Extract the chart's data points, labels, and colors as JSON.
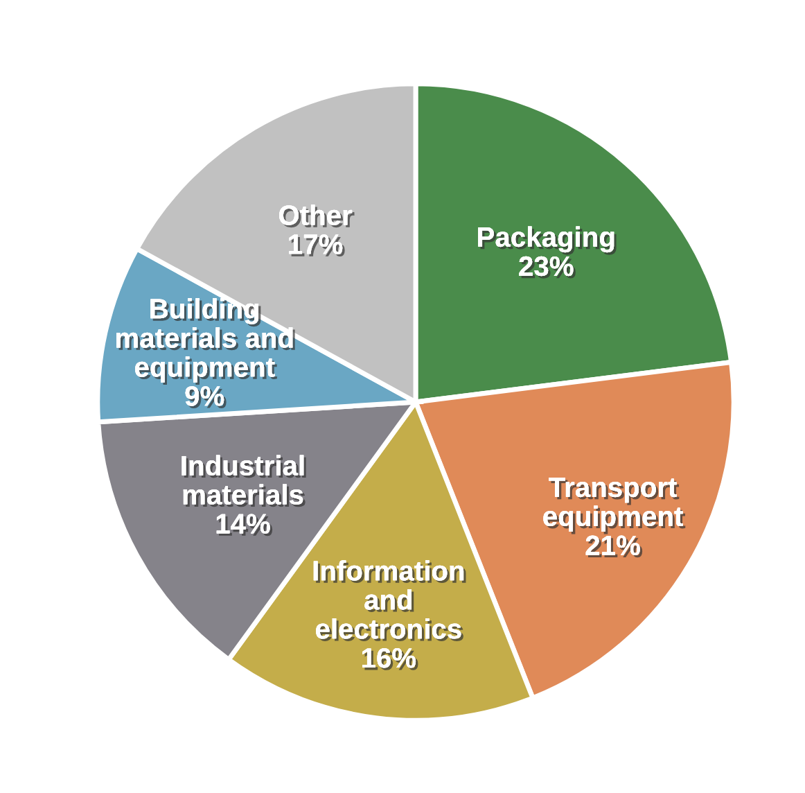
{
  "chart_data": {
    "type": "pie",
    "categories": [
      "Packaging",
      "Transport\nequipment",
      "Information\nand\nelectronics",
      "Industrial\nmaterials",
      "Building\nmaterials and\nequipment",
      "Other"
    ],
    "values": [
      23,
      21,
      16,
      14,
      9,
      17
    ],
    "value_labels": [
      "23%",
      "21%",
      "16%",
      "14%",
      "9%",
      "17%"
    ],
    "colors": [
      "#4a8c4b",
      "#e08a58",
      "#c4ad4a",
      "#85838a",
      "#6aa7c4",
      "#c1c1c1"
    ]
  }
}
